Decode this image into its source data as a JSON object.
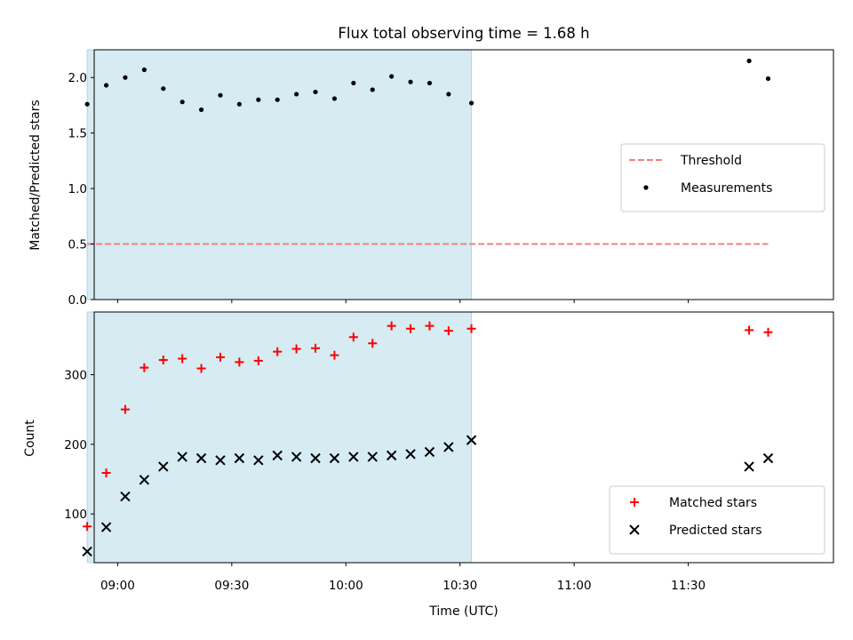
{
  "chart_data": [
    {
      "type": "scatter",
      "title": "Flux total observing time = 1.68 h",
      "xlabel": "",
      "ylabel": "Matched/Predicted stars",
      "ylim": [
        0.0,
        2.25
      ],
      "yticks": [
        "0.0",
        "0.5",
        "1.0",
        "1.5",
        "2.0"
      ],
      "x_ticks": [
        "09:00",
        "09:30",
        "10:00",
        "10:30",
        "11:00",
        "11:30"
      ],
      "xlim": [
        "08:53:50",
        "12:08:10"
      ],
      "grid": false,
      "legend_position": "center-right",
      "observing_window": {
        "start": "08:52:00",
        "end": "10:33:00",
        "color": "#add8e6"
      },
      "threshold": {
        "name": "Threshold",
        "value": 0.5,
        "x_start": "08:52:00",
        "x_end": "11:51:00",
        "color": "#f08080",
        "style": "dashed"
      },
      "series": [
        {
          "name": "Measurements",
          "color": "#000000",
          "marker": "dot",
          "x": [
            "08:52:00",
            "08:57:00",
            "09:02:00",
            "09:07:00",
            "09:12:00",
            "09:17:00",
            "09:22:00",
            "09:27:00",
            "09:32:00",
            "09:37:00",
            "09:42:00",
            "09:47:00",
            "09:52:00",
            "09:57:00",
            "10:02:00",
            "10:07:00",
            "10:12:00",
            "10:17:00",
            "10:22:00",
            "10:27:00",
            "10:33:00",
            "11:46:00",
            "11:51:00"
          ],
          "y": [
            1.76,
            1.93,
            2.0,
            2.07,
            1.9,
            1.78,
            1.71,
            1.84,
            1.76,
            1.8,
            1.8,
            1.85,
            1.87,
            1.81,
            1.95,
            1.89,
            2.01,
            1.96,
            1.95,
            1.85,
            1.77,
            2.15,
            1.99
          ]
        }
      ]
    },
    {
      "type": "scatter",
      "title": "",
      "xlabel": "Time (UTC)",
      "ylabel": "Count",
      "ylim": [
        30,
        390
      ],
      "yticks": [
        "100",
        "200",
        "300"
      ],
      "x_ticks": [
        "09:00",
        "09:30",
        "10:00",
        "10:30",
        "11:00",
        "11:30"
      ],
      "xlim": [
        "08:53:50",
        "12:08:10"
      ],
      "grid": false,
      "legend_position": "bottom-right",
      "observing_window": {
        "start": "08:52:00",
        "end": "10:33:00",
        "color": "#add8e6"
      },
      "series": [
        {
          "name": "Matched stars",
          "color": "#ff0000",
          "marker": "plus",
          "x": [
            "08:52:00",
            "08:57:00",
            "09:02:00",
            "09:07:00",
            "09:12:00",
            "09:17:00",
            "09:22:00",
            "09:27:00",
            "09:32:00",
            "09:37:00",
            "09:42:00",
            "09:47:00",
            "09:52:00",
            "09:57:00",
            "10:02:00",
            "10:07:00",
            "10:12:00",
            "10:17:00",
            "10:22:00",
            "10:27:00",
            "10:33:00",
            "11:46:00",
            "11:51:00"
          ],
          "y": [
            82,
            159,
            250,
            310,
            321,
            323,
            309,
            325,
            318,
            320,
            333,
            337,
            338,
            328,
            354,
            345,
            370,
            366,
            370,
            363,
            366,
            364,
            361
          ]
        },
        {
          "name": "Predicted stars",
          "color": "#000000",
          "marker": "x",
          "x": [
            "08:52:00",
            "08:57:00",
            "09:02:00",
            "09:07:00",
            "09:12:00",
            "09:17:00",
            "09:22:00",
            "09:27:00",
            "09:32:00",
            "09:37:00",
            "09:42:00",
            "09:47:00",
            "09:52:00",
            "09:57:00",
            "10:02:00",
            "10:07:00",
            "10:12:00",
            "10:17:00",
            "10:22:00",
            "10:27:00",
            "10:33:00",
            "11:46:00",
            "11:51:00"
          ],
          "y": [
            46,
            81,
            125,
            149,
            168,
            182,
            180,
            177,
            180,
            177,
            184,
            182,
            180,
            180,
            182,
            182,
            184,
            186,
            189,
            196,
            206,
            168,
            180
          ]
        }
      ]
    }
  ]
}
